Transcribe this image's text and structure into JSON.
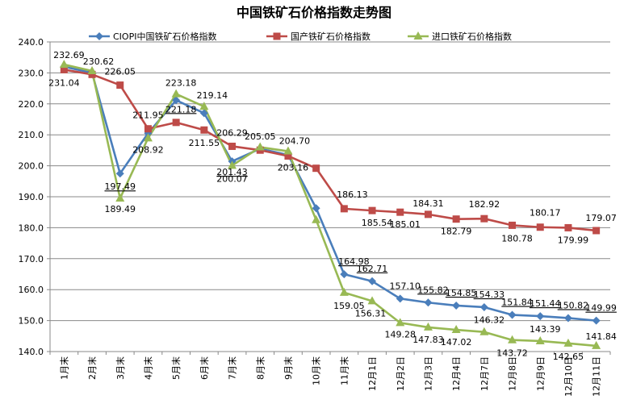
{
  "chart_data": {
    "type": "line",
    "title": "中国铁矿石价格指数走势图",
    "xlabel": "",
    "ylabel": "",
    "ylim": [
      140,
      240
    ],
    "yticks": [
      "140.0",
      "150.0",
      "160.0",
      "170.0",
      "180.0",
      "190.0",
      "200.0",
      "210.0",
      "220.0",
      "230.0",
      "240.0"
    ],
    "grid": true,
    "legend_position": "top",
    "categories": [
      "1月末",
      "2月末",
      "3月末",
      "4月末",
      "5月末",
      "6月末",
      "7月末",
      "8月末",
      "9月末",
      "10月末",
      "11月末",
      "12月1日",
      "12月2日",
      "12月3日",
      "12月4日",
      "12月7日",
      "12月8日",
      "12月9日",
      "12月10日",
      "12月11日"
    ],
    "series": [
      {
        "name": "CIOPI中国铁矿石价格指数",
        "color": "#4A7EBB",
        "marker": "diamond",
        "values": [
          232.0,
          230.0,
          197.49,
          210.5,
          221.18,
          217.0,
          201.43,
          205.5,
          203.5,
          186.3,
          164.98,
          162.71,
          157.1,
          155.82,
          154.85,
          154.33,
          151.84,
          151.44,
          150.82,
          149.99
        ],
        "labels": [
          "",
          "",
          "197.49",
          "",
          "221.18",
          "",
          "201.43",
          "",
          "",
          "",
          "164.98",
          "162.71",
          "157.10",
          "155.82",
          "154.85",
          "154.33",
          "151.84",
          "151.44",
          "150.82",
          "149.99"
        ]
      },
      {
        "name": "国产铁矿石价格指数",
        "color": "#BE4B48",
        "marker": "square",
        "values": [
          231.04,
          229.5,
          226.05,
          211.95,
          214.0,
          211.55,
          206.29,
          205.05,
          203.16,
          199.2,
          186.13,
          185.54,
          185.01,
          184.31,
          182.79,
          182.92,
          180.78,
          180.17,
          179.99,
          179.07
        ],
        "labels": [
          "231.04",
          "",
          "226.05",
          "211.95",
          "",
          "211.55",
          "206.29",
          "205.05",
          "203.16",
          "",
          "186.13",
          "185.54",
          "185.01",
          "184.31",
          "182.79",
          "182.92",
          "180.78",
          "180.17",
          "179.99",
          "179.07"
        ]
      },
      {
        "name": "进口铁矿石价格指数",
        "color": "#98B954",
        "marker": "triangle",
        "values": [
          232.69,
          230.62,
          189.49,
          208.92,
          223.18,
          219.14,
          200.07,
          206.0,
          204.7,
          182.5,
          159.05,
          156.31,
          149.28,
          147.83,
          147.02,
          146.32,
          143.72,
          143.39,
          142.65,
          141.84
        ],
        "labels": [
          "232.69",
          "230.62",
          "189.49",
          "208.92",
          "223.18",
          "219.14",
          "200.07",
          "",
          "204.70",
          "",
          "159.05",
          "156.31",
          "149.28",
          "147.83",
          "147.02",
          "146.32",
          "143.72",
          "143.39",
          "142.65",
          "141.84"
        ]
      }
    ]
  }
}
